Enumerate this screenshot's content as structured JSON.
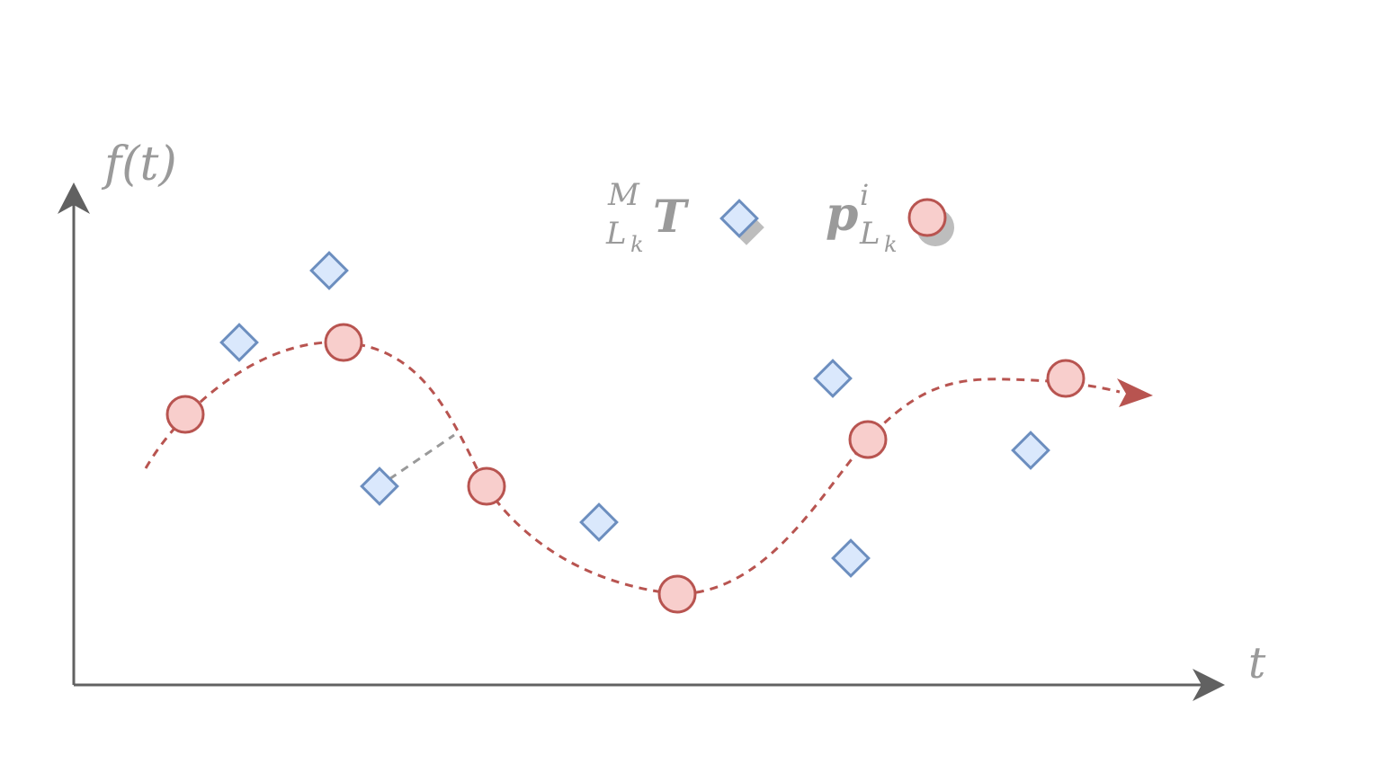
{
  "axes": {
    "y_label": "f(t)",
    "x_label": "t",
    "axis_color": "#616161"
  },
  "legend": {
    "transform_label": {
      "sup": "M",
      "sub": "L",
      "subsub": "k",
      "symbol": "T"
    },
    "point_label": {
      "symbol": "p",
      "sup": "i",
      "sub": "L",
      "subsub": "k"
    }
  },
  "colors": {
    "circle_fill": "#f8cecc",
    "circle_stroke": "#b85450",
    "diamond_fill": "#dae8fc",
    "diamond_stroke": "#6c8ebf",
    "curve": "#b85450",
    "link": "#999999",
    "shadow": "#bdbdbd"
  },
  "icons": [
    "diamond-marker-icon",
    "circle-marker-icon",
    "arrow-head-icon"
  ]
}
